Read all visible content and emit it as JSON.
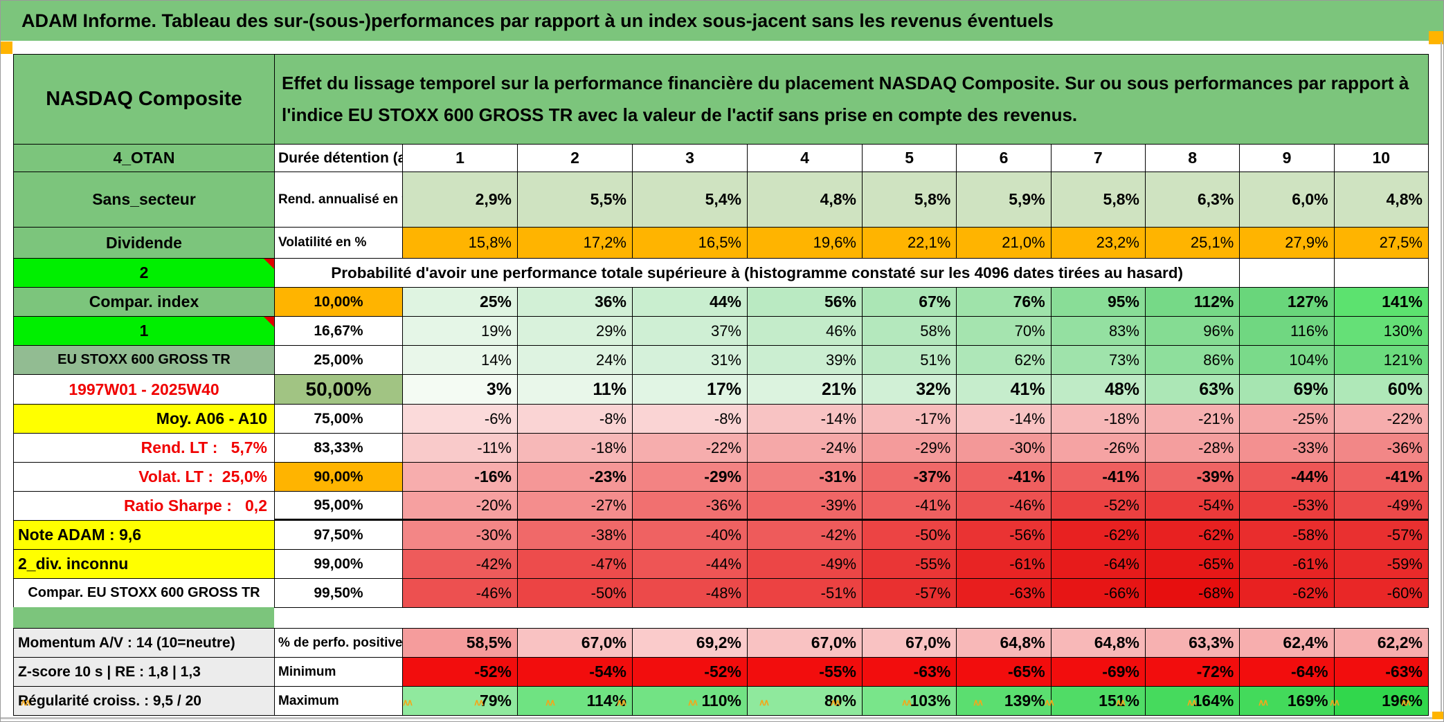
{
  "title": "ADAM Informe. Tableau des sur-(sous-)performances par rapport à un index sous-jacent sans les revenus éventuels",
  "colors": {
    "green": "#7cc57c",
    "muted_green": "#92bc92",
    "olive_green": "#a1c483",
    "bright_green": "#00ef00",
    "orange": "#ffb400",
    "yellow": "#ffff00",
    "gray_label": "#ececec",
    "rend_green": "#cfe3c1",
    "red_text": "#f00000",
    "min_red": "#f20d0d",
    "accent_orange": "#f2a71b"
  },
  "header": {
    "asset": "NASDAQ Composite",
    "description": "Effet du lissage temporel sur la performance financière du placement NASDAQ Composite. Sur ou sous performances par rapport à l'indice EU STOXX 600 GROSS TR avec la valeur de l'actif sans prise en compte des revenus."
  },
  "duration": {
    "a": "4_OTAN",
    "b": "Durée détention (an)",
    "cols": [
      "1",
      "2",
      "3",
      "4",
      "5",
      "6",
      "7",
      "8",
      "9",
      "10"
    ]
  },
  "probability_note": "Probabilité d'avoir une performance totale supérieure à (histogramme constaté sur les 4096 dates tirées au hasard)",
  "matrix_rows": [
    {
      "kind": "tall",
      "bold": true,
      "a": {
        "t": "Sans_secteur",
        "bg": "green"
      },
      "b": {
        "t": "Rend. annualisé en %",
        "left": true
      },
      "cells": [
        [
          "2,9%",
          "#cfe3c1"
        ],
        [
          "5,5%",
          "#cfe3c1"
        ],
        [
          "5,4%",
          "#cfe3c1"
        ],
        [
          "4,8%",
          "#cfe3c1"
        ],
        [
          "5,8%",
          "#cfe3c1"
        ],
        [
          "5,9%",
          "#cfe3c1"
        ],
        [
          "5,8%",
          "#cfe3c1"
        ],
        [
          "6,3%",
          "#cfe3c1"
        ],
        [
          "6,0%",
          "#cfe3c1"
        ],
        [
          "4,8%",
          "#cfe3c1"
        ]
      ]
    },
    {
      "kind": "vol",
      "bold": false,
      "a": {
        "t": "Dividende",
        "bg": "green"
      },
      "b": {
        "t": "Volatilité en %",
        "left": true
      },
      "cells": [
        [
          "15,8%",
          "#ffb400"
        ],
        [
          "17,2%",
          "#ffb400"
        ],
        [
          "16,5%",
          "#ffb400"
        ],
        [
          "19,6%",
          "#ffb400"
        ],
        [
          "22,1%",
          "#ffb400"
        ],
        [
          "21,0%",
          "#ffb400"
        ],
        [
          "23,2%",
          "#ffb400"
        ],
        [
          "25,1%",
          "#ffb400"
        ],
        [
          "27,9%",
          "#ffb400"
        ],
        [
          "27,5%",
          "#ffb400"
        ]
      ]
    },
    {
      "type": "prob",
      "kind": "std",
      "a": {
        "t": "2",
        "bg": "bright",
        "marker": true
      }
    },
    {
      "kind": "std",
      "bold": true,
      "a": {
        "t": "Compar. index",
        "bg": "green"
      },
      "b": {
        "t": "10,00%",
        "bg": "orange"
      },
      "cells": [
        [
          "25%",
          "#dff4e1"
        ],
        [
          "36%",
          "#d2f0d6"
        ],
        [
          "44%",
          "#c9eecf"
        ],
        [
          "56%",
          "#baeac2"
        ],
        [
          "67%",
          "#abe6b5"
        ],
        [
          "76%",
          "#9fe3aa"
        ],
        [
          "95%",
          "#89dd97"
        ],
        [
          "112%",
          "#76d987"
        ],
        [
          "127%",
          "#69d67b"
        ],
        [
          "141%",
          "#5ce26f"
        ]
      ]
    },
    {
      "kind": "std",
      "bold": false,
      "a": {
        "t": "1",
        "bg": "bright",
        "marker": true
      },
      "b": {
        "t": "16,67%"
      },
      "cells": [
        [
          "19%",
          "#e5f6e7"
        ],
        [
          "29%",
          "#d9f2dc"
        ],
        [
          "37%",
          "#cfefd4"
        ],
        [
          "46%",
          "#c4ecca"
        ],
        [
          "58%",
          "#b4e8bd"
        ],
        [
          "70%",
          "#a5e4af"
        ],
        [
          "83%",
          "#94e0a1"
        ],
        [
          "96%",
          "#85dc93"
        ],
        [
          "116%",
          "#70d781"
        ],
        [
          "130%",
          "#65e077"
        ]
      ]
    },
    {
      "kind": "std",
      "bold": false,
      "a": {
        "t": "EU STOXX 600 GROSS TR",
        "bg": "muted",
        "small": true
      },
      "b": {
        "t": "25,00%"
      },
      "cells": [
        [
          "14%",
          "#e9f7ea"
        ],
        [
          "24%",
          "#def3e1"
        ],
        [
          "31%",
          "#d5f1da"
        ],
        [
          "39%",
          "#cbeed1"
        ],
        [
          "51%",
          "#bceac4"
        ],
        [
          "62%",
          "#aee7b8"
        ],
        [
          "73%",
          "#9fe3ab"
        ],
        [
          "86%",
          "#8edf9c"
        ],
        [
          "104%",
          "#7ada8a"
        ],
        [
          "121%",
          "#6cdc7e"
        ]
      ]
    },
    {
      "kind": "big",
      "big": true,
      "a": {
        "t": "1997W01 - 2025W40",
        "fg": "red"
      },
      "b": {
        "t": "50,00%",
        "bg": "olive",
        "big": true
      },
      "cells": [
        [
          "3%",
          "#f4fbf3"
        ],
        [
          "11%",
          "#e9f7ea"
        ],
        [
          "17%",
          "#e1f5e4"
        ],
        [
          "21%",
          "#dcf3df"
        ],
        [
          "32%",
          "#d1f0d6"
        ],
        [
          "41%",
          "#c6edcc"
        ],
        [
          "48%",
          "#bfebc6"
        ],
        [
          "63%",
          "#ace7b6"
        ],
        [
          "69%",
          "#a6e5b1"
        ],
        [
          "60%",
          "#afe8b8"
        ]
      ]
    },
    {
      "kind": "std",
      "bold": false,
      "a": {
        "t": "Moy. A06 - A10",
        "bg": "yellow",
        "align": "right"
      },
      "b": {
        "t": "75,00%"
      },
      "cells": [
        [
          "-6%",
          "#fbdada"
        ],
        [
          "-8%",
          "#fad4d4"
        ],
        [
          "-8%",
          "#fad4d4"
        ],
        [
          "-14%",
          "#f8c3c3"
        ],
        [
          "-17%",
          "#f7bbbb"
        ],
        [
          "-14%",
          "#f8c3c3"
        ],
        [
          "-18%",
          "#f7b8b8"
        ],
        [
          "-21%",
          "#f6b0b0"
        ],
        [
          "-25%",
          "#f5a6a6"
        ],
        [
          "-22%",
          "#f6adad"
        ]
      ]
    },
    {
      "kind": "std",
      "bold": false,
      "a": {
        "t": "Rend. LT :   5,7%",
        "fg": "red",
        "align": "right"
      },
      "b": {
        "t": "83,33%"
      },
      "cells": [
        [
          "-11%",
          "#f9caca"
        ],
        [
          "-18%",
          "#f7b8b8"
        ],
        [
          "-22%",
          "#f6adad"
        ],
        [
          "-24%",
          "#f5a8a8"
        ],
        [
          "-29%",
          "#f49b9b"
        ],
        [
          "-30%",
          "#f39898"
        ],
        [
          "-26%",
          "#f5a3a3"
        ],
        [
          "-28%",
          "#f49e9e"
        ],
        [
          "-33%",
          "#f39090"
        ],
        [
          "-36%",
          "#f28787"
        ]
      ]
    },
    {
      "kind": "std",
      "bold": true,
      "a": {
        "t": "Volat. LT :  25,0%",
        "fg": "red",
        "align": "right"
      },
      "b": {
        "t": "90,00%",
        "bg": "orange"
      },
      "cells": [
        [
          "-16%",
          "#f7adad"
        ],
        [
          "-23%",
          "#f59797"
        ],
        [
          "-29%",
          "#f38383"
        ],
        [
          "-31%",
          "#f27d7d"
        ],
        [
          "-37%",
          "#f06969"
        ],
        [
          "-41%",
          "#ef5f5f"
        ],
        [
          "-41%",
          "#ef5f5f"
        ],
        [
          "-39%",
          "#ef6464"
        ],
        [
          "-44%",
          "#ee5656"
        ],
        [
          "-41%",
          "#ef5f5f"
        ]
      ]
    },
    {
      "kind": "std",
      "bold": false,
      "thick": true,
      "a": {
        "t": "Ratio Sharpe :   0,2",
        "fg": "red",
        "align": "right"
      },
      "b": {
        "t": "95,00%"
      },
      "cells": [
        [
          "-20%",
          "#f6a0a0"
        ],
        [
          "-27%",
          "#f48d8d"
        ],
        [
          "-36%",
          "#f17070"
        ],
        [
          "-39%",
          "#f06666"
        ],
        [
          "-41%",
          "#ef6060"
        ],
        [
          "-46%",
          "#ed5151"
        ],
        [
          "-52%",
          "#eb4040"
        ],
        [
          "-54%",
          "#eb3a3a"
        ],
        [
          "-53%",
          "#eb3d3d"
        ],
        [
          "-49%",
          "#ec4949"
        ]
      ]
    },
    {
      "kind": "std",
      "bold": false,
      "a": {
        "t": "Note ADAM : 9,6",
        "bg": "yellow",
        "align": "left"
      },
      "b": {
        "t": "97,50%"
      },
      "cells": [
        [
          "-30%",
          "#f38686"
        ],
        [
          "-38%",
          "#f06969"
        ],
        [
          "-40%",
          "#ef6262"
        ],
        [
          "-42%",
          "#ee5b5b"
        ],
        [
          "-50%",
          "#ec4444"
        ],
        [
          "-56%",
          "#ea3333"
        ],
        [
          "-62%",
          "#e82121"
        ],
        [
          "-62%",
          "#e82121"
        ],
        [
          "-58%",
          "#e92d2d"
        ],
        [
          "-57%",
          "#e93030"
        ]
      ]
    },
    {
      "kind": "std",
      "bold": false,
      "a": {
        "t": "2_div. inconnu",
        "bg": "yellow",
        "align": "left"
      },
      "b": {
        "t": "99,00%"
      },
      "cells": [
        [
          "-42%",
          "#ee5b5b"
        ],
        [
          "-47%",
          "#ed4c4c"
        ],
        [
          "-44%",
          "#ee5555"
        ],
        [
          "-49%",
          "#ec4646"
        ],
        [
          "-55%",
          "#ea3636"
        ],
        [
          "-61%",
          "#e82424"
        ],
        [
          "-64%",
          "#e71b1b"
        ],
        [
          "-65%",
          "#e71818"
        ],
        [
          "-61%",
          "#e82424"
        ],
        [
          "-59%",
          "#e92a2a"
        ]
      ]
    },
    {
      "kind": "std",
      "bold": false,
      "a": {
        "t": "Compar. EU STOXX 600 GROSS TR",
        "small": true
      },
      "b": {
        "t": "99,50%"
      },
      "cells": [
        [
          "-46%",
          "#ed5050"
        ],
        [
          "-50%",
          "#ec4444"
        ],
        [
          "-48%",
          "#ec4a4a"
        ],
        [
          "-51%",
          "#ec4242"
        ],
        [
          "-57%",
          "#e93030"
        ],
        [
          "-63%",
          "#e81e1e"
        ],
        [
          "-66%",
          "#e71515"
        ],
        [
          "-68%",
          "#e70f0f"
        ],
        [
          "-62%",
          "#e82121"
        ],
        [
          "-60%",
          "#e92727"
        ]
      ]
    }
  ],
  "bottom_rows": [
    {
      "bold": true,
      "a": {
        "t": "Momentum A/V : 14 (10=neutre)",
        "bg": "gray",
        "align": "left"
      },
      "b": {
        "t": "% de perfo. positive",
        "left": true
      },
      "cells": [
        [
          "58,5%",
          "#f59c9c"
        ],
        [
          "67,0%",
          "#f9c2c2"
        ],
        [
          "69,2%",
          "#facbcb"
        ],
        [
          "67,0%",
          "#f9c2c2"
        ],
        [
          "67,0%",
          "#f9c2c2"
        ],
        [
          "64,8%",
          "#f8b8b8"
        ],
        [
          "64,8%",
          "#f8b8b8"
        ],
        [
          "63,3%",
          "#f7b1b1"
        ],
        [
          "62,4%",
          "#f7aeae"
        ],
        [
          "62,2%",
          "#f7adad"
        ]
      ]
    },
    {
      "bold": true,
      "a": {
        "t": "Z-score 10 s | RE : 1,8 | 1,3",
        "bg": "gray",
        "align": "left"
      },
      "b": {
        "t": "Minimum",
        "left": true
      },
      "cells": [
        [
          "-52%",
          "#f20d0d"
        ],
        [
          "-54%",
          "#f20d0d"
        ],
        [
          "-52%",
          "#f20d0d"
        ],
        [
          "-55%",
          "#f20d0d"
        ],
        [
          "-63%",
          "#f20d0d"
        ],
        [
          "-65%",
          "#f20d0d"
        ],
        [
          "-69%",
          "#f20d0d"
        ],
        [
          "-72%",
          "#f20d0d"
        ],
        [
          "-64%",
          "#f20d0d"
        ],
        [
          "-63%",
          "#f20d0d"
        ]
      ]
    },
    {
      "bold": true,
      "a": {
        "t": "Régularité croiss. : 9,5 / 20",
        "bg": "gray",
        "align": "left"
      },
      "b": {
        "t": "Maximum",
        "left": true
      },
      "cells": [
        [
          "79%",
          "#90e99e"
        ],
        [
          "114%",
          "#6fe382"
        ],
        [
          "110%",
          "#72e384"
        ],
        [
          "80%",
          "#8fe99d"
        ],
        [
          "103%",
          "#79e58a"
        ],
        [
          "139%",
          "#5bde70"
        ],
        [
          "151%",
          "#50dc66"
        ],
        [
          "164%",
          "#46da5d"
        ],
        [
          "169%",
          "#43da5b"
        ],
        [
          "196%",
          "#31d74c"
        ]
      ]
    }
  ]
}
